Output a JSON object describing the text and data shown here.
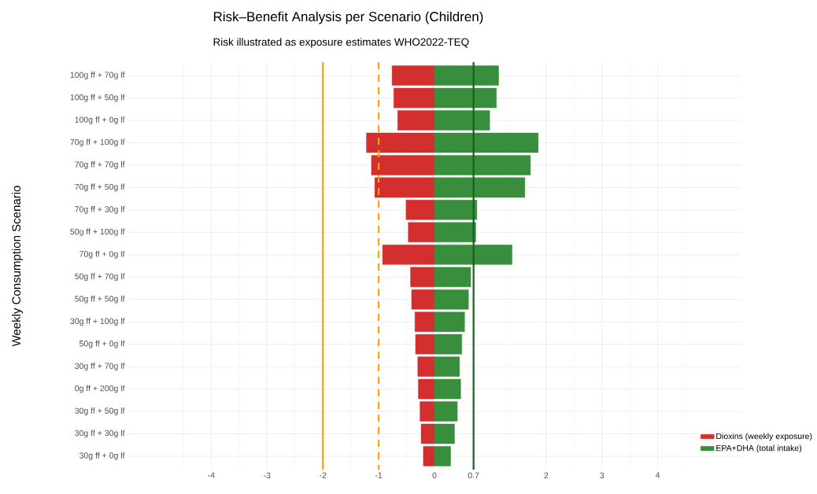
{
  "chart_data": {
    "type": "bar",
    "orientation": "horizontal",
    "stacked": true,
    "title": "Risk–Benefit Analysis per Scenario (Children)",
    "subtitle": "Risk illustrated as exposure estimates WHO2022-TEQ",
    "ylabel": "Weekly Consumption Scenario",
    "categories": [
      "100g ff + 70g lf",
      "100g ff + 50g lf",
      "100g ff + 0g lf",
      "70g ff + 100g lf",
      "70g ff + 70g lf",
      "70g ff + 50g lf",
      "70g ff + 30g lf",
      "50g ff + 100g lf",
      "70g ff + 0g lf",
      "50g ff + 70g lf",
      "50g ff + 50g lf",
      "30g ff + 100g lf",
      "50g ff + 0g lf",
      "30g ff + 70g lf",
      "0g ff + 200g lf",
      "30g ff + 50g lf",
      "30g ff + 30g lf",
      "30g ff + 0g lf"
    ],
    "series": [
      {
        "name": "Dioxins (weekly exposure)",
        "color": "#d32f2f",
        "values": [
          -0.76,
          -0.73,
          -0.66,
          -1.22,
          -1.13,
          -1.07,
          -0.51,
          -0.47,
          -0.93,
          -0.43,
          -0.41,
          -0.35,
          -0.34,
          -0.3,
          -0.29,
          -0.26,
          -0.24,
          -0.2
        ]
      },
      {
        "name": "EPA+DHA (total intake)",
        "color": "#388e3c",
        "values": [
          1.15,
          1.11,
          0.99,
          1.86,
          1.72,
          1.62,
          0.76,
          0.74,
          1.39,
          0.65,
          0.61,
          0.54,
          0.49,
          0.45,
          0.47,
          0.41,
          0.36,
          0.29
        ]
      }
    ],
    "xlim": [
      -5.5,
      5.5
    ],
    "xticks": [
      -4,
      -3,
      -2,
      -1,
      0,
      0.7,
      2,
      3,
      4
    ],
    "ref_lines": [
      {
        "axis": "x",
        "value": -2,
        "color": "#ffa500",
        "line_style": "solid"
      },
      {
        "axis": "x",
        "value": -1,
        "color": "#ffa500",
        "line_style": "dashed"
      },
      {
        "axis": "x",
        "value": 0.7,
        "color": "#1b5e20",
        "line_style": "solid"
      }
    ],
    "grid": true,
    "legend": "bottom right"
  }
}
